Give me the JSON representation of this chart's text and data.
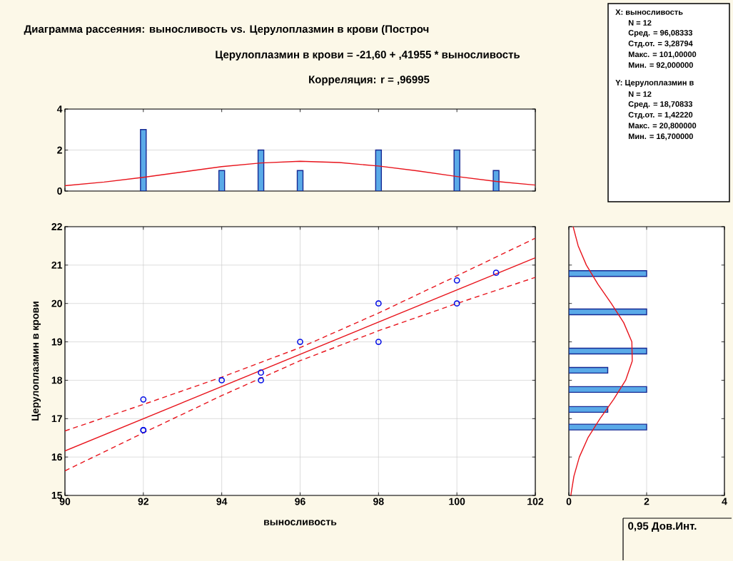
{
  "chart_data": [
    {
      "type": "bar",
      "title": "Диаграмма рассеяния: выносливость vs. Церулоплазмин в крови (Построч",
      "subtitle": "Церулоплазмин в крови = -21,60 + ,41955 * выносливость",
      "annotations": [
        "Корреляция: r =  ,96995"
      ],
      "series": [
        {
          "type": "bar",
          "color": "#5aaae8",
          "x": [
            92,
            94,
            95,
            96,
            98,
            100,
            101
          ],
          "values": [
            3,
            1,
            2,
            1,
            2,
            2,
            1
          ]
        },
        {
          "type": "line",
          "color": "#e8141c",
          "x": [
            90,
            91,
            92,
            93,
            94,
            95,
            96,
            97,
            98,
            99,
            100,
            101,
            102
          ],
          "values": [
            0.26,
            0.44,
            0.67,
            0.93,
            1.19,
            1.37,
            1.45,
            1.39,
            1.22,
            0.98,
            0.71,
            0.47,
            0.29
          ]
        }
      ],
      "xlim": [
        90,
        102
      ],
      "xticks": [
        90,
        92,
        94,
        96,
        98,
        100,
        102
      ],
      "ylim": [
        0,
        4
      ],
      "yticks": [
        0,
        2,
        4
      ],
      "tick_labels": "y",
      "grid": "y"
    },
    {
      "type": "scatter",
      "xlabel": "выносливость",
      "ylabel": "Церулоплазмин в крови",
      "annotations": [
        "0,95 Дов.Инт."
      ],
      "series": [
        {
          "type": "scatter",
          "marker": "circle",
          "color": "#0a14e6",
          "x": [
            92,
            92,
            92,
            94,
            95,
            95,
            96,
            98,
            98,
            100,
            100,
            101
          ],
          "values": [
            17.5,
            16.7,
            16.7,
            18,
            18.2,
            18,
            19,
            20,
            19,
            20.6,
            20,
            20.8
          ]
        },
        {
          "type": "line",
          "color": "#e8141c",
          "x": [
            90,
            102
          ],
          "values": [
            16.16,
            21.19
          ]
        },
        {
          "type": "line",
          "color": "#e8141c",
          "line_style": "dashed",
          "x": [
            90,
            92,
            94,
            96,
            98,
            100,
            102
          ],
          "values": [
            16.68,
            17.37,
            18.08,
            18.85,
            19.75,
            20.72,
            21.7
          ]
        },
        {
          "type": "line",
          "color": "#e8141c",
          "line_style": "dashed",
          "x": [
            90,
            92,
            94,
            96,
            98,
            100,
            102
          ],
          "values": [
            15.64,
            16.63,
            17.6,
            18.51,
            19.29,
            20.0,
            20.68
          ]
        }
      ],
      "xlim": [
        90,
        102
      ],
      "xticks": [
        90,
        92,
        94,
        96,
        98,
        100,
        102
      ],
      "ylim": [
        15,
        22
      ],
      "yticks": [
        15,
        16,
        17,
        18,
        19,
        20,
        21,
        22
      ],
      "grid": true
    },
    {
      "type": "bar",
      "orientation": "horizontal",
      "series": [
        {
          "type": "bar",
          "color": "#5aaae8",
          "x": [
            16.78,
            17.24,
            17.76,
            18.26,
            18.76,
            19.78,
            20.78
          ],
          "values": [
            2,
            1,
            2,
            1,
            2,
            2,
            2
          ]
        },
        {
          "type": "line",
          "color": "#e8141c",
          "x": [
            15,
            15.5,
            16,
            16.5,
            17,
            17.5,
            18,
            18.5,
            19,
            19.5,
            20,
            20.5,
            21,
            21.5,
            22
          ],
          "values": [
            0.05,
            0.13,
            0.27,
            0.49,
            0.8,
            1.15,
            1.46,
            1.63,
            1.62,
            1.41,
            1.09,
            0.75,
            0.45,
            0.24,
            0.11
          ]
        }
      ],
      "xlim": [
        0,
        4
      ],
      "xticks": [
        0,
        2,
        4
      ],
      "ylim": [
        15,
        22
      ],
      "yticks": [
        15,
        16,
        17,
        18,
        19,
        20,
        21,
        22
      ],
      "tick_labels": "x",
      "grid": "x"
    },
    {
      "type": "other",
      "annotations": [
        "X: выносливость",
        "N = 12",
        "Сред. = 96,08333",
        "Стд.от. = 3,28794",
        "Макс. = 101,00000",
        "Мин. = 92,000000",
        "Y: Церулоплазмин в",
        "N = 12",
        "Сред. = 18,70833",
        "Стд.от. = 1,42220",
        "Макс. = 20,800000",
        "Мин. = 16,700000"
      ]
    }
  ]
}
